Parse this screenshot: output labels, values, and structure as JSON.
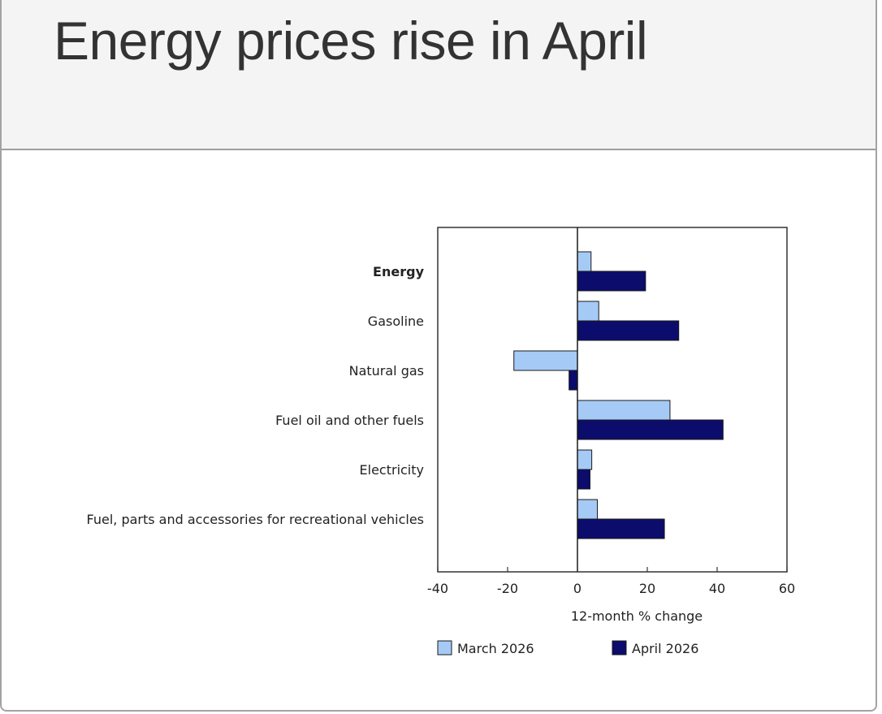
{
  "title": "Energy prices rise in April",
  "chart_data": {
    "type": "bar",
    "orientation": "horizontal",
    "categories": [
      "Energy",
      "Gasoline",
      "Natural gas",
      "Fuel oil and other fuels",
      "Electricity",
      "Fuel, parts and accessories for recreational vehicles"
    ],
    "bold_categories": [
      "Energy"
    ],
    "series": [
      {
        "name": "March 2026",
        "color": "#a6caf6",
        "values": [
          3.9,
          6.1,
          -18.2,
          26.5,
          4.1,
          5.7
        ]
      },
      {
        "name": "April 2026",
        "color": "#0c0c6c",
        "values": [
          19.5,
          29.0,
          -2.4,
          41.7,
          3.6,
          24.9
        ]
      }
    ],
    "xlabel": "12-month % change",
    "xlim": [
      -40,
      60
    ],
    "xticks": [
      -40,
      -20,
      0,
      20,
      40,
      60
    ],
    "ylabel": "",
    "grid": false,
    "legend": "bottom"
  }
}
